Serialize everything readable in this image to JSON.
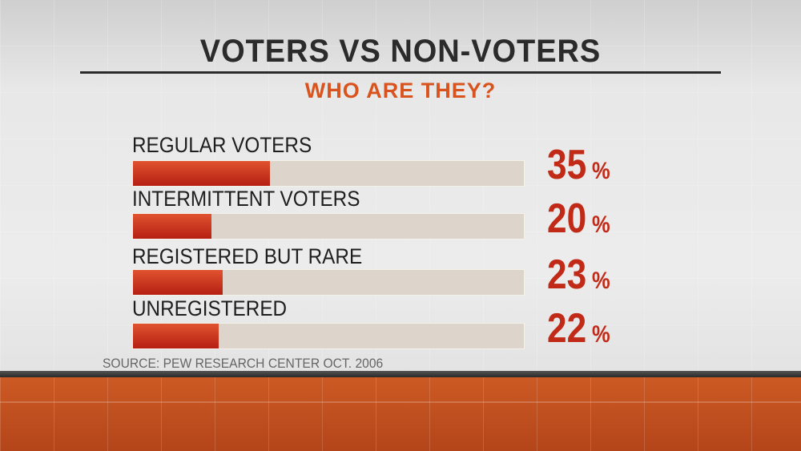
{
  "chart_data": {
    "type": "bar",
    "title": "VOTERS VS NON-VOTERS",
    "subtitle": "WHO ARE THEY?",
    "categories": [
      "REGULAR VOTERS",
      "INTERMITTENT VOTERS",
      "REGISTERED BUT RARE",
      "UNREGISTERED"
    ],
    "values": [
      35,
      20,
      23,
      22
    ],
    "value_labels": [
      "35",
      "20",
      "23",
      "22"
    ],
    "unit": "%",
    "xlim": [
      0,
      100
    ],
    "orientation": "horizontal",
    "source": "SOURCE: PEW RESEARCH CENTER OCT. 2006",
    "colors": {
      "bar": "#c22a18",
      "track": "#ddd5cb",
      "title": "#2b2b2b",
      "subtitle": "#d9531e"
    }
  }
}
